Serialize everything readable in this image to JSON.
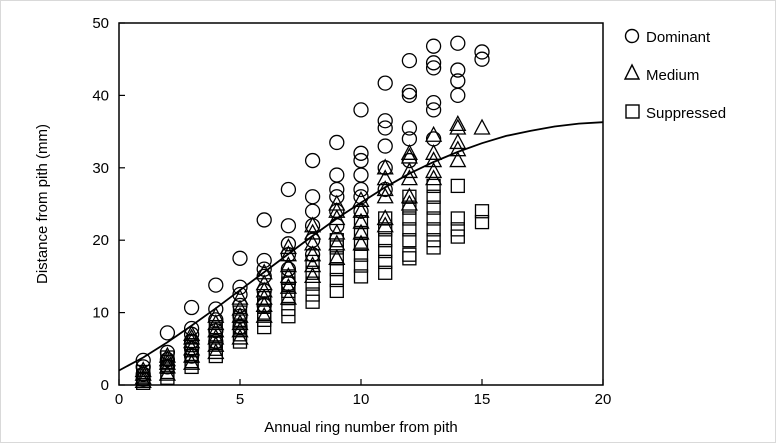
{
  "chart_data": {
    "type": "scatter",
    "xlabel": "Annual ring number from pith",
    "ylabel": "Distance from pith (mm)",
    "xlim": [
      0,
      20
    ],
    "ylim": [
      0,
      50
    ],
    "xticks": [
      0,
      5,
      10,
      15,
      20
    ],
    "yticks": [
      0,
      10,
      20,
      30,
      40,
      50
    ],
    "grid": false,
    "legend_position": "right",
    "series": [
      {
        "name": "Dominant",
        "marker": "circle",
        "points": [
          [
            1,
            0.8
          ],
          [
            1,
            1.5
          ],
          [
            1,
            2.5
          ],
          [
            1,
            3.4
          ],
          [
            2,
            2.5
          ],
          [
            2,
            3.5
          ],
          [
            2,
            4.5
          ],
          [
            2,
            7.2
          ],
          [
            3,
            4
          ],
          [
            3,
            5
          ],
          [
            3,
            6
          ],
          [
            3,
            7
          ],
          [
            3,
            7.8
          ],
          [
            3,
            10.7
          ],
          [
            4,
            6
          ],
          [
            4,
            7.5
          ],
          [
            4,
            9
          ],
          [
            4,
            10.5
          ],
          [
            4,
            13.8
          ],
          [
            5,
            8
          ],
          [
            5,
            9.5
          ],
          [
            5,
            11
          ],
          [
            5,
            12.5
          ],
          [
            5,
            13.5
          ],
          [
            5,
            17.5
          ],
          [
            6,
            11
          ],
          [
            6,
            13
          ],
          [
            6,
            15
          ],
          [
            6,
            16
          ],
          [
            6,
            17.2
          ],
          [
            6,
            22.8
          ],
          [
            7,
            14
          ],
          [
            7,
            16
          ],
          [
            7,
            18
          ],
          [
            7,
            19.5
          ],
          [
            7,
            22
          ],
          [
            7,
            27
          ],
          [
            8,
            18
          ],
          [
            8,
            20
          ],
          [
            8,
            22
          ],
          [
            8,
            24
          ],
          [
            8,
            26
          ],
          [
            8,
            31
          ],
          [
            9,
            22
          ],
          [
            9,
            24
          ],
          [
            9,
            26
          ],
          [
            9,
            27
          ],
          [
            9,
            29
          ],
          [
            9,
            33.5
          ],
          [
            10,
            24
          ],
          [
            10,
            26
          ],
          [
            10,
            27
          ],
          [
            10,
            29
          ],
          [
            10,
            31
          ],
          [
            10,
            32
          ],
          [
            10,
            38
          ],
          [
            11,
            27
          ],
          [
            11,
            30
          ],
          [
            11,
            33
          ],
          [
            11,
            35.5
          ],
          [
            11,
            36.5
          ],
          [
            11,
            41.7
          ],
          [
            12,
            31
          ],
          [
            12,
            34
          ],
          [
            12,
            35.5
          ],
          [
            12,
            40
          ],
          [
            12,
            40.5
          ],
          [
            12,
            44.8
          ],
          [
            13,
            34
          ],
          [
            13,
            38
          ],
          [
            13,
            39
          ],
          [
            13,
            43.8
          ],
          [
            13,
            44.5
          ],
          [
            13,
            46.8
          ],
          [
            14,
            40
          ],
          [
            14,
            42
          ],
          [
            14,
            43.5
          ],
          [
            14,
            47.2
          ],
          [
            15,
            45
          ],
          [
            15,
            46
          ]
        ]
      },
      {
        "name": "Medium",
        "marker": "triangle",
        "points": [
          [
            1,
            0.5
          ],
          [
            1,
            1
          ],
          [
            1,
            1.5
          ],
          [
            1,
            2
          ],
          [
            2,
            1.5
          ],
          [
            2,
            2.5
          ],
          [
            2,
            3
          ],
          [
            2,
            3.5
          ],
          [
            2,
            4
          ],
          [
            3,
            3
          ],
          [
            3,
            4
          ],
          [
            3,
            5
          ],
          [
            3,
            6
          ],
          [
            3,
            6.5
          ],
          [
            3,
            7
          ],
          [
            4,
            4.5
          ],
          [
            4,
            5.5
          ],
          [
            4,
            6.5
          ],
          [
            4,
            7.5
          ],
          [
            4,
            8.5
          ],
          [
            4,
            9.5
          ],
          [
            5,
            6.5
          ],
          [
            5,
            7.5
          ],
          [
            5,
            8.5
          ],
          [
            5,
            9.5
          ],
          [
            5,
            10.5
          ],
          [
            5,
            12
          ],
          [
            6,
            9.5
          ],
          [
            6,
            11
          ],
          [
            6,
            12
          ],
          [
            6,
            13
          ],
          [
            6,
            14
          ],
          [
            6,
            15.5
          ],
          [
            7,
            12
          ],
          [
            7,
            13.5
          ],
          [
            7,
            15
          ],
          [
            7,
            16.5
          ],
          [
            7,
            18
          ],
          [
            7,
            19
          ],
          [
            8,
            15
          ],
          [
            8,
            16.5
          ],
          [
            8,
            18
          ],
          [
            8,
            19.5
          ],
          [
            8,
            21
          ],
          [
            8,
            22
          ],
          [
            9,
            17.5
          ],
          [
            9,
            19.5
          ],
          [
            9,
            21
          ],
          [
            9,
            23
          ],
          [
            9,
            24
          ],
          [
            9,
            25
          ],
          [
            10,
            19.5
          ],
          [
            10,
            21
          ],
          [
            10,
            22.5
          ],
          [
            10,
            24
          ],
          [
            10,
            25.5
          ],
          [
            11,
            22
          ],
          [
            11,
            23
          ],
          [
            11,
            26
          ],
          [
            11,
            27
          ],
          [
            11,
            28.5
          ],
          [
            11,
            30
          ],
          [
            12,
            25
          ],
          [
            12,
            26
          ],
          [
            12,
            28.5
          ],
          [
            12,
            29.5
          ],
          [
            12,
            31.5
          ],
          [
            12,
            32
          ],
          [
            13,
            28.5
          ],
          [
            13,
            29.5
          ],
          [
            13,
            31
          ],
          [
            13,
            32
          ],
          [
            13,
            34.5
          ],
          [
            14,
            31
          ],
          [
            14,
            32.5
          ],
          [
            14,
            33.5
          ],
          [
            14,
            35.5
          ],
          [
            14,
            36
          ],
          [
            15,
            35.5
          ]
        ]
      },
      {
        "name": "Suppressed",
        "marker": "square",
        "points": [
          [
            1,
            0.3
          ],
          [
            1,
            0.8
          ],
          [
            1,
            1.3
          ],
          [
            1,
            1.8
          ],
          [
            2,
            1
          ],
          [
            2,
            1.8
          ],
          [
            2,
            2.5
          ],
          [
            2,
            3.2
          ],
          [
            2,
            3.8
          ],
          [
            3,
            2.5
          ],
          [
            3,
            3.3
          ],
          [
            3,
            4
          ],
          [
            3,
            4.8
          ],
          [
            3,
            5.5
          ],
          [
            4,
            4
          ],
          [
            4,
            5
          ],
          [
            4,
            6
          ],
          [
            4,
            7
          ],
          [
            4,
            8
          ],
          [
            5,
            6
          ],
          [
            5,
            7
          ],
          [
            5,
            8
          ],
          [
            5,
            9
          ],
          [
            5,
            10
          ],
          [
            6,
            8
          ],
          [
            6,
            9
          ],
          [
            6,
            10
          ],
          [
            6,
            11
          ],
          [
            6,
            12
          ],
          [
            7,
            9.5
          ],
          [
            7,
            10.5
          ],
          [
            7,
            12
          ],
          [
            7,
            13
          ],
          [
            7,
            14
          ],
          [
            7,
            15
          ],
          [
            8,
            11.5
          ],
          [
            8,
            12.5
          ],
          [
            8,
            14
          ],
          [
            8,
            15.5
          ],
          [
            8,
            17
          ],
          [
            9,
            13
          ],
          [
            9,
            14.5
          ],
          [
            9,
            16
          ],
          [
            9,
            17.5
          ],
          [
            9,
            19
          ],
          [
            9,
            20
          ],
          [
            10,
            15
          ],
          [
            10,
            16.5
          ],
          [
            10,
            18
          ],
          [
            10,
            19.5
          ],
          [
            10,
            21
          ],
          [
            10,
            22.5
          ],
          [
            11,
            15.5
          ],
          [
            11,
            17
          ],
          [
            11,
            18.5
          ],
          [
            11,
            20
          ],
          [
            11,
            21.5
          ],
          [
            11,
            23
          ],
          [
            12,
            17.5
          ],
          [
            12,
            18
          ],
          [
            12,
            20
          ],
          [
            12,
            21.5
          ],
          [
            12,
            23
          ],
          [
            12,
            24.5
          ],
          [
            12,
            26
          ],
          [
            13,
            19
          ],
          [
            13,
            20
          ],
          [
            13,
            21.5
          ],
          [
            13,
            23
          ],
          [
            13,
            24.5
          ],
          [
            13,
            26
          ],
          [
            13,
            27.5
          ],
          [
            14,
            20.5
          ],
          [
            14,
            21.5
          ],
          [
            14,
            23
          ],
          [
            14,
            27.5
          ],
          [
            15,
            22.5
          ],
          [
            15,
            24
          ]
        ]
      }
    ],
    "fit_curve": [
      [
        0,
        2
      ],
      [
        1,
        3.8
      ],
      [
        2,
        5.9
      ],
      [
        3,
        8.2
      ],
      [
        4,
        10.6
      ],
      [
        5,
        13.1
      ],
      [
        6,
        15.6
      ],
      [
        7,
        18.1
      ],
      [
        8,
        20.6
      ],
      [
        9,
        23
      ],
      [
        10,
        25.2
      ],
      [
        11,
        27.3
      ],
      [
        12,
        29.2
      ],
      [
        13,
        30.8
      ],
      [
        14,
        32.2
      ],
      [
        15,
        33.4
      ],
      [
        16,
        34.4
      ],
      [
        17,
        35.1
      ],
      [
        18,
        35.7
      ],
      [
        19,
        36.1
      ],
      [
        20,
        36.3
      ]
    ]
  }
}
